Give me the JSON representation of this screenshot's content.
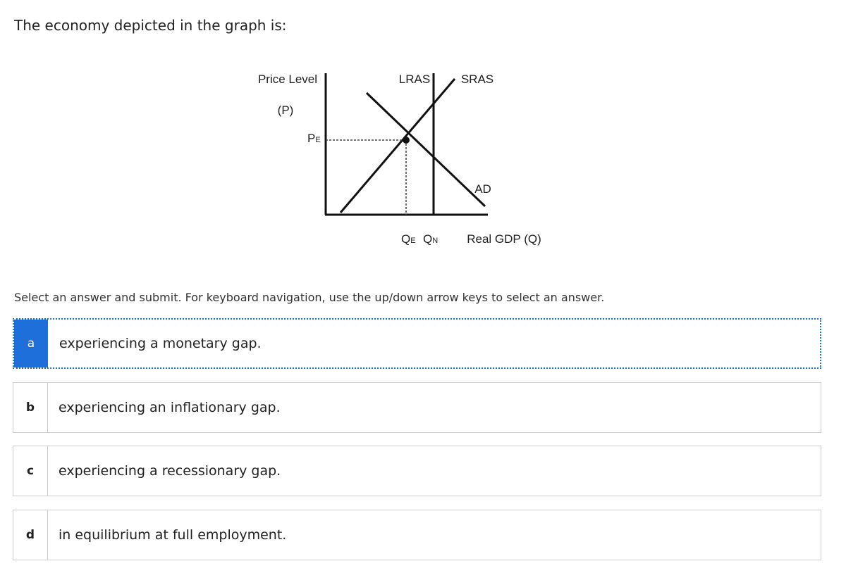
{
  "question": "The economy depicted in the graph is:",
  "diagram": {
    "y_axis": "Price Level",
    "y_axis_symbol": "(P)",
    "price": {
      "base": "P",
      "sub": "E"
    },
    "lras": "LRAS",
    "sras": "SRAS",
    "ad": "AD",
    "q_e": {
      "base": "Q",
      "sub": "E"
    },
    "q_n": {
      "base": "Q",
      "sub": "N"
    },
    "x_axis": "Real GDP (Q)"
  },
  "instruction": "Select an answer and submit. For keyboard navigation, use the up/down arrow keys to select an answer.",
  "options": [
    {
      "letter": "a",
      "text": "experiencing a monetary gap."
    },
    {
      "letter": "b",
      "text": "experiencing an inflationary gap."
    },
    {
      "letter": "c",
      "text": "experiencing a recessionary gap."
    },
    {
      "letter": "d",
      "text": "in equilibrium at full employment."
    }
  ]
}
